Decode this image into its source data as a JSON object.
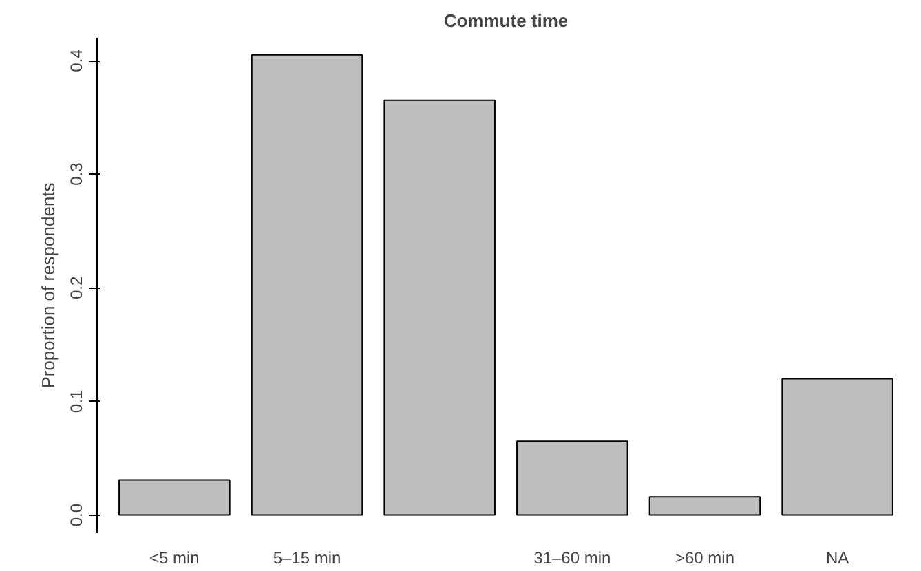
{
  "chart_data": {
    "type": "bar",
    "title": "Commute time",
    "ylabel": "Proportion of respondents",
    "categories": [
      "<5 min",
      "5–15 min",
      null,
      "31–60 min",
      ">60 min",
      "NA"
    ],
    "values": [
      0.031,
      0.405,
      0.365,
      0.065,
      0.016,
      0.12
    ],
    "color": "#bebebe",
    "ylim": [
      -0.016,
      0.42
    ],
    "yticks": [
      {
        "value": 0,
        "label": "0.0"
      },
      0.1,
      0.2,
      0.3,
      0.4
    ],
    "grid": false
  }
}
